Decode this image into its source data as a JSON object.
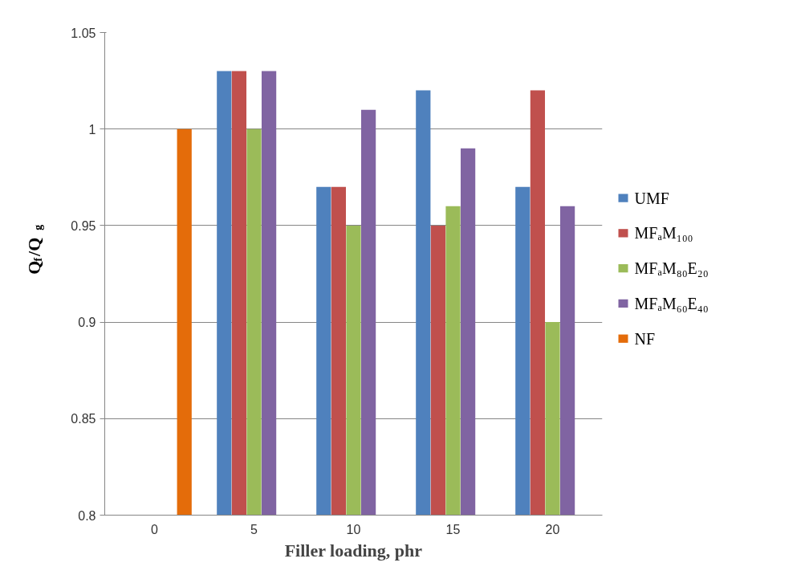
{
  "chart_data": {
    "type": "bar",
    "xlabel": "Filler loading, phr",
    "ylabel": "Q$_{f}$/Q$_{g}$",
    "categories": [
      "0",
      "5",
      "10",
      "15",
      "20"
    ],
    "series": [
      {
        "name": "UMF",
        "color": "#4f81bd",
        "values": [
          null,
          1.03,
          0.97,
          1.02,
          0.97
        ]
      },
      {
        "name": "MFₐM₁₀₀",
        "color": "#c0504d",
        "values": [
          null,
          1.03,
          0.97,
          0.95,
          1.02
        ]
      },
      {
        "name": "MFₐM₈₀E₂₀",
        "color": "#9bbb59",
        "values": [
          null,
          1.0,
          0.95,
          0.96,
          0.9
        ]
      },
      {
        "name": "MFₐM₆₀E₄₀",
        "color": "#8064a2",
        "values": [
          null,
          1.03,
          1.01,
          0.99,
          0.96
        ]
      },
      {
        "name": "NF",
        "color": "#e46c0a",
        "values": [
          1.0,
          null,
          null,
          null,
          null
        ]
      }
    ],
    "ylim": [
      0.8,
      1.05
    ],
    "yticks": [
      0.8,
      0.85,
      0.9,
      0.95,
      1,
      1.05
    ],
    "grid": "y",
    "legend": "right"
  }
}
